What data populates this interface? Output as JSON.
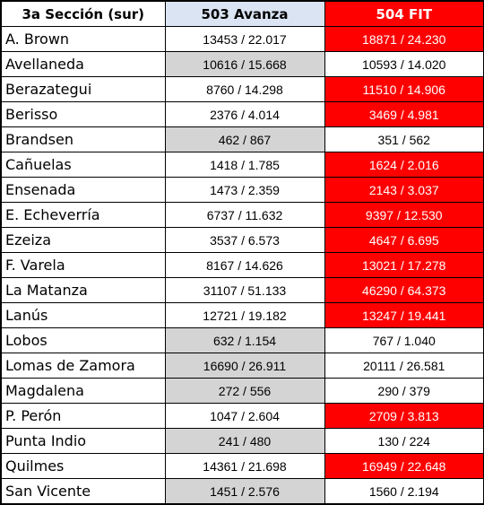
{
  "table": {
    "headers": [
      "3a Sección (sur)",
      "503 Avanza",
      "504 FIT"
    ],
    "colors": {
      "header_avanza": "#dbe4f3",
      "header_fit": "#ff0000",
      "winner_avanza": "#d4d4d4",
      "winner_fit": "#ff0000"
    },
    "rows": [
      {
        "name": "A. Brown",
        "avanza": "13453 / 22.017",
        "fit": "18871 / 24.230",
        "winner": "fit"
      },
      {
        "name": "Avellaneda",
        "avanza": "10616 / 15.668",
        "fit": "10593 / 14.020",
        "winner": "avanza"
      },
      {
        "name": "Berazategui",
        "avanza": "8760 / 14.298",
        "fit": "11510 / 14.906",
        "winner": "fit"
      },
      {
        "name": "Berisso",
        "avanza": "2376 / 4.014",
        "fit": "3469 / 4.981",
        "winner": "fit"
      },
      {
        "name": "Brandsen",
        "avanza": "462 / 867",
        "fit": "351 / 562",
        "winner": "avanza"
      },
      {
        "name": "Cañuelas",
        "avanza": "1418 / 1.785",
        "fit": "1624 / 2.016",
        "winner": "fit"
      },
      {
        "name": "Ensenada",
        "avanza": "1473 / 2.359",
        "fit": "2143 / 3.037",
        "winner": "fit"
      },
      {
        "name": "E. Echeverría",
        "avanza": "6737 / 11.632",
        "fit": "9397 / 12.530",
        "winner": "fit"
      },
      {
        "name": "Ezeiza",
        "avanza": "3537 / 6.573",
        "fit": "4647 / 6.695",
        "winner": "fit"
      },
      {
        "name": "F. Varela",
        "avanza": "8167 / 14.626",
        "fit": "13021 / 17.278",
        "winner": "fit"
      },
      {
        "name": "La Matanza",
        "avanza": "31107 / 51.133",
        "fit": "46290 / 64.373",
        "winner": "fit"
      },
      {
        "name": "Lanús",
        "avanza": "12721 / 19.182",
        "fit": "13247 / 19.441",
        "winner": "fit"
      },
      {
        "name": "Lobos",
        "avanza": "632 / 1.154",
        "fit": "767 / 1.040",
        "winner": "avanza"
      },
      {
        "name": "Lomas de Zamora",
        "avanza": "16690 / 26.911",
        "fit": "20111 / 26.581",
        "winner": "avanza"
      },
      {
        "name": "Magdalena",
        "avanza": "272 / 556",
        "fit": "290 / 379",
        "winner": "avanza"
      },
      {
        "name": "P. Perón",
        "avanza": "1047 / 2.604",
        "fit": "2709 / 3.813",
        "winner": "fit"
      },
      {
        "name": "Punta Indio",
        "avanza": "241 / 480",
        "fit": "130 / 224",
        "winner": "avanza"
      },
      {
        "name": "Quilmes",
        "avanza": "14361 / 21.698",
        "fit": "16949 / 22.648",
        "winner": "fit"
      },
      {
        "name": "San Vicente",
        "avanza": "1451 / 2.576",
        "fit": "1560 / 2.194",
        "winner": "avanza"
      }
    ]
  }
}
